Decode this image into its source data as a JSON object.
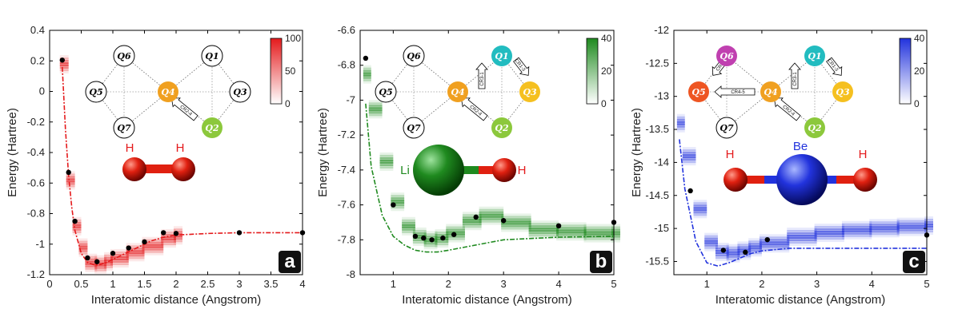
{
  "colors": {
    "a": "#e41a1c",
    "b": "#1f8a1f",
    "c": "#2233dd"
  },
  "chart_data": [
    {
      "type": "scatter",
      "panel": "a",
      "xlabel": "Interatomic distance (Angstrom)",
      "ylabel": "Energy (Hartree)",
      "xlim": [
        0,
        4
      ],
      "ylim": [
        -1.2,
        0.4
      ],
      "xticks": [
        "0",
        "0.5",
        "1",
        "1.5",
        "2",
        "2.5",
        "3",
        "3.5",
        "4"
      ],
      "xticks_val": [
        0,
        0.5,
        1,
        1.5,
        2,
        2.5,
        3,
        3.5,
        4
      ],
      "yticks": [
        "0.4",
        "0.2",
        "0",
        "-0.2",
        "-0.4",
        "-0.6",
        "-0.8",
        "-1",
        "-1.2"
      ],
      "yticks_val": [
        0.4,
        0.2,
        0,
        -0.2,
        -0.4,
        -0.6,
        -0.8,
        -1,
        -1.2
      ],
      "colorbar": {
        "ticks": [
          "100",
          "50",
          "0"
        ],
        "max": 100
      },
      "molecule": [
        "H",
        "H"
      ],
      "qubits": [
        "Q6",
        "Q1",
        "Q5",
        "Q4",
        "Q3",
        "Q7",
        "Q2"
      ],
      "gates": [
        "CR2-4"
      ],
      "points": {
        "x": [
          0.2,
          0.3,
          0.4,
          0.6,
          0.75,
          1.0,
          1.25,
          1.5,
          1.8,
          2.0,
          3.0,
          4.0
        ],
        "y": [
          0.205,
          -0.53,
          -0.85,
          -1.09,
          -1.115,
          -1.06,
          -1.025,
          -0.985,
          -0.925,
          -0.93,
          -0.925,
          -0.925
        ]
      },
      "exact": {
        "x": [
          0.2,
          0.25,
          0.3,
          0.35,
          0.4,
          0.5,
          0.6,
          0.7,
          0.75,
          0.8,
          0.9,
          1.0,
          1.2,
          1.4,
          1.6,
          1.8,
          2.0,
          2.5,
          3.0,
          4.0
        ],
        "y": [
          0.16,
          -0.25,
          -0.55,
          -0.76,
          -0.91,
          -1.06,
          -1.12,
          -1.135,
          -1.136,
          -1.133,
          -1.12,
          -1.1,
          -1.06,
          -1.02,
          -0.98,
          -0.955,
          -0.94,
          -0.93,
          -0.925,
          -0.925
        ]
      },
      "hist": {
        "x": [
          0.2,
          0.3,
          0.4,
          0.5,
          0.6,
          0.75,
          0.9,
          1.0,
          1.25,
          1.5,
          1.8,
          2.0
        ],
        "y": [
          0.18,
          -0.58,
          -0.88,
          -1.02,
          -1.12,
          -1.13,
          -1.11,
          -1.09,
          -1.05,
          -1.01,
          -0.96,
          -0.94
        ]
      }
    },
    {
      "type": "scatter",
      "panel": "b",
      "xlabel": "Interatomic distance (Angstrom)",
      "ylabel": "Energy (Hartree)",
      "xlim": [
        0.4,
        5
      ],
      "ylim": [
        -8,
        -6.6
      ],
      "xticks": [
        "1",
        "2",
        "3",
        "4",
        "5"
      ],
      "xticks_val": [
        1,
        2,
        3,
        4,
        5
      ],
      "yticks": [
        "-6.6",
        "-6.8",
        "-7",
        "-7.2",
        "-7.4",
        "-7.6",
        "-7.8",
        "-8"
      ],
      "yticks_val": [
        -6.6,
        -6.8,
        -7,
        -7.2,
        -7.4,
        -7.6,
        -7.8,
        -8
      ],
      "colorbar": {
        "ticks": [
          "40",
          "20",
          "0"
        ],
        "max": 40
      },
      "molecule": [
        "Li",
        "H"
      ],
      "qubits": [
        "Q6",
        "Q1",
        "Q5",
        "Q4",
        "Q3",
        "Q7",
        "Q2"
      ],
      "gates": [
        "CR1-3",
        "CR3-1",
        "CR2-4"
      ],
      "points": {
        "x": [
          0.5,
          1.0,
          1.4,
          1.55,
          1.7,
          1.9,
          2.1,
          2.5,
          3.0,
          4.0,
          5.0
        ],
        "y": [
          -6.76,
          -7.6,
          -7.78,
          -7.79,
          -7.8,
          -7.79,
          -7.77,
          -7.67,
          -7.69,
          -7.72,
          -7.7
        ]
      },
      "exact": {
        "x": [
          0.5,
          0.6,
          0.8,
          1.0,
          1.2,
          1.4,
          1.6,
          1.8,
          2.0,
          2.5,
          3.0,
          4.0,
          5.0
        ],
        "y": [
          -7.02,
          -7.38,
          -7.66,
          -7.78,
          -7.83,
          -7.86,
          -7.87,
          -7.87,
          -7.86,
          -7.83,
          -7.8,
          -7.785,
          -7.78
        ]
      },
      "hist": {
        "x": [
          0.5,
          0.6,
          0.8,
          1.0,
          1.2,
          1.4,
          1.6,
          1.8,
          2.0,
          2.3,
          2.6,
          3.0,
          3.5,
          4.0,
          4.5,
          5.0
        ],
        "y": [
          -6.85,
          -7.05,
          -7.35,
          -7.58,
          -7.72,
          -7.78,
          -7.8,
          -7.79,
          -7.76,
          -7.69,
          -7.66,
          -7.7,
          -7.74,
          -7.75,
          -7.76,
          -7.76
        ]
      }
    },
    {
      "type": "scatter",
      "panel": "c",
      "xlabel": "Interatomic distance (Angstrom)",
      "ylabel": "Energy (Hartree)",
      "xlim": [
        0.4,
        5
      ],
      "ylim": [
        -15.7,
        -12
      ],
      "xticks": [
        "1",
        "2",
        "3",
        "4",
        "5"
      ],
      "xticks_val": [
        1,
        2,
        3,
        4,
        5
      ],
      "yticks": [
        "-12",
        "-12.5",
        "-13",
        "-13.5",
        "-14",
        "-14.5",
        "-15",
        "-15.5"
      ],
      "yticks_val": [
        -12,
        -12.5,
        -13,
        -13.5,
        -14,
        -14.5,
        -15,
        -15.5
      ],
      "colorbar": {
        "ticks": [
          "40",
          "20",
          "0"
        ],
        "max": 40
      },
      "molecule": [
        "H",
        "Be",
        "H"
      ],
      "qubits": [
        "Q6",
        "Q1",
        "Q5",
        "Q4",
        "Q3",
        "Q7",
        "Q2"
      ],
      "gates": [
        "CR6-5",
        "CR1-3",
        "CR4-5",
        "CR3-1",
        "CR2-4"
      ],
      "points": {
        "x": [
          0.7,
          1.3,
          1.7,
          2.1,
          5.0
        ],
        "y": [
          -14.43,
          -15.33,
          -15.36,
          -15.17,
          -15.1
        ]
      },
      "exact": {
        "x": [
          0.5,
          0.6,
          0.8,
          1.0,
          1.2,
          1.4,
          1.6,
          1.8,
          2.0,
          2.5,
          3.0,
          4.0,
          5.0
        ],
        "y": [
          -13.65,
          -14.4,
          -15.2,
          -15.52,
          -15.57,
          -15.52,
          -15.45,
          -15.38,
          -15.34,
          -15.3,
          -15.3,
          -15.3,
          -15.3
        ]
      },
      "hist": {
        "x": [
          0.5,
          0.6,
          0.8,
          1.0,
          1.2,
          1.4,
          1.6,
          1.8,
          2.0,
          2.5,
          3.0,
          3.5,
          4.0,
          4.5,
          5.0
        ],
        "y": [
          -13.4,
          -13.9,
          -14.7,
          -15.2,
          -15.35,
          -15.37,
          -15.33,
          -15.28,
          -15.22,
          -15.12,
          -15.06,
          -15.02,
          -14.99,
          -14.97,
          -14.95
        ]
      }
    }
  ]
}
